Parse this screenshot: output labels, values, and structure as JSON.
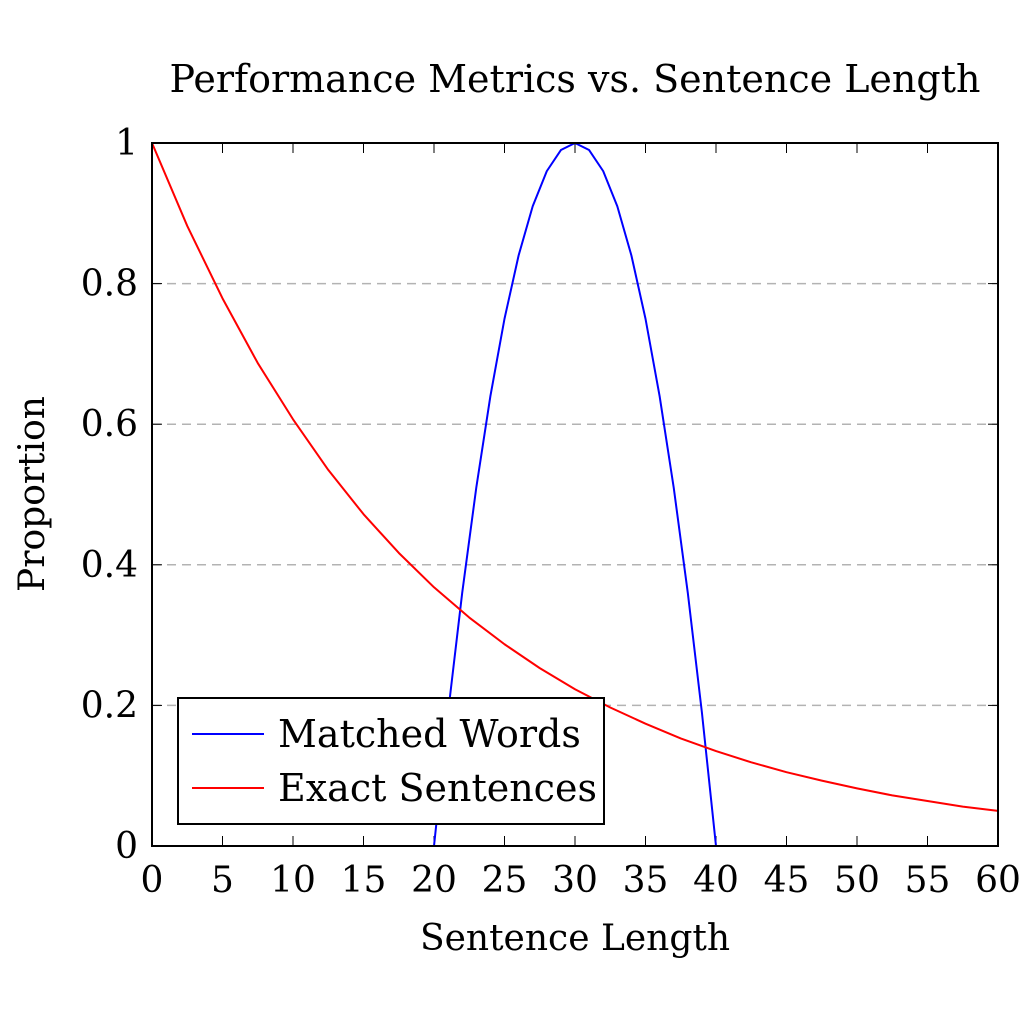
{
  "chart_data": {
    "type": "line",
    "title": "Performance Metrics vs. Sentence Length",
    "xlabel": "Sentence Length",
    "ylabel": "Proportion",
    "xlim": [
      0,
      60
    ],
    "ylim": [
      0,
      1
    ],
    "x_ticks": [
      "0",
      "5",
      "10",
      "15",
      "20",
      "25",
      "30",
      "35",
      "40",
      "45",
      "50",
      "55",
      "60"
    ],
    "y_ticks": [
      "0",
      "0.2",
      "0.4",
      "0.6",
      "0.8",
      "1"
    ],
    "x_tick_values": [
      0,
      5,
      10,
      15,
      20,
      25,
      30,
      35,
      40,
      45,
      50,
      55,
      60
    ],
    "y_tick_values": [
      0,
      0.2,
      0.4,
      0.6,
      0.8,
      1
    ],
    "grid": "horizontal dashed",
    "legend_position": "bottom-left",
    "series": [
      {
        "name": "Matched Words",
        "color": "#0000ff",
        "x": [
          20,
          21,
          22,
          23,
          24,
          25,
          26,
          27,
          28,
          29,
          30,
          31,
          32,
          33,
          34,
          35,
          36,
          37,
          38,
          39,
          40
        ],
        "y": [
          0,
          0.19,
          0.36,
          0.51,
          0.64,
          0.75,
          0.84,
          0.91,
          0.96,
          0.99,
          1.0,
          0.99,
          0.96,
          0.91,
          0.84,
          0.75,
          0.64,
          0.51,
          0.36,
          0.19,
          0
        ]
      },
      {
        "name": "Exact Sentences",
        "color": "#ff0000",
        "x": [
          0,
          2.5,
          5,
          7.5,
          10,
          12.5,
          15,
          17.5,
          20,
          22.5,
          25,
          27.5,
          30,
          32.5,
          35,
          37.5,
          40,
          42.5,
          45,
          47.5,
          50,
          52.5,
          55,
          57.5,
          60
        ],
        "y": [
          1.0,
          0.882,
          0.779,
          0.687,
          0.607,
          0.535,
          0.472,
          0.417,
          0.368,
          0.325,
          0.287,
          0.253,
          0.223,
          0.197,
          0.174,
          0.153,
          0.135,
          0.119,
          0.105,
          0.093,
          0.082,
          0.072,
          0.064,
          0.056,
          0.05
        ]
      }
    ]
  }
}
